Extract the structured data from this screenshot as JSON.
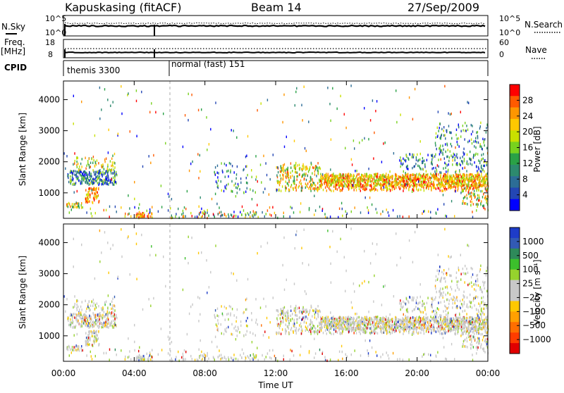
{
  "chart_data": {
    "type": "heatmap",
    "title": {
      "station": "Kapuskasing (fitACF)",
      "beam": "Beam 14",
      "date": "27/Sep/2009"
    },
    "x_axis": {
      "label": "Time UT",
      "range_hours": [
        0,
        24
      ],
      "tick_labels": [
        "00:00",
        "04:00",
        "08:00",
        "12:00",
        "16:00",
        "20:00",
        "00:00"
      ],
      "tick_hours": [
        0,
        4,
        8,
        12,
        16,
        20,
        24
      ]
    },
    "header_panels": {
      "nsky_nsearch": {
        "left_label": "N.Sky",
        "right_label": "N.Search",
        "left_ticks": [
          "10^5",
          "10^0"
        ],
        "right_ticks": [
          "10^5",
          "10^0"
        ]
      },
      "freq_nave": {
        "left_label_top": "Freq.",
        "left_label_unit": "[MHz]",
        "right_label": "Nave",
        "left_ticks": [
          "18",
          "8"
        ],
        "right_ticks": [
          "60",
          "0"
        ]
      },
      "cpid": {
        "label": "CPID",
        "segments": [
          {
            "name": "themis 3300",
            "start_hour": 0.0
          },
          {
            "name": "normal (fast) 151",
            "start_hour": 5.95
          }
        ]
      }
    },
    "panels": [
      {
        "parameter": "power",
        "ylabel": "Slant Range [km]",
        "y_range_km": [
          180,
          4600
        ],
        "y_ticks": [
          1000,
          2000,
          3000,
          4000
        ],
        "colorbar_label": "Power [dB]",
        "colorbar_ticks": [
          "28",
          "24",
          "20",
          "16",
          "12",
          "8",
          "4"
        ],
        "colors_top_to_bottom": [
          "#ff0000",
          "#ff5a00",
          "#ff9600",
          "#ffc800",
          "#c8e000",
          "#78d21e",
          "#2aa146",
          "#2d8a6e",
          "#2c6d96",
          "#2346b4",
          "#0000ff"
        ]
      },
      {
        "parameter": "velocity",
        "ylabel": "Slant Range [km]",
        "y_range_km": [
          180,
          4600
        ],
        "y_ticks": [
          1000,
          2000,
          3000,
          4000
        ],
        "colorbar_label": "Velocity [m s⁻¹]",
        "colorbar_ticks": [
          "1000",
          "500",
          "100",
          "25",
          "−25",
          "−100",
          "−500",
          "−1000"
        ],
        "colors_top_to_bottom": [
          "#1e3cc8",
          "#325ab4",
          "#2e8a5a",
          "#3cbf2c",
          "#96d22d",
          "#c8c8c8",
          "#c8c8c8",
          "#ffc800",
          "#ffa000",
          "#ff6e00",
          "#ff3c00",
          "#e10000"
        ]
      }
    ]
  }
}
